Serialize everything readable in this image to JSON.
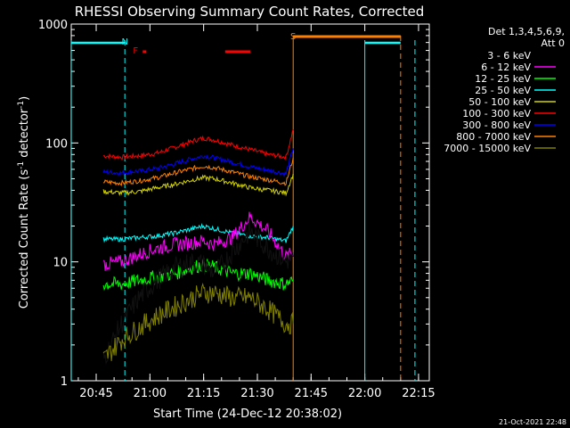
{
  "chart_data": {
    "type": "line",
    "title": "RHESSI Observing Summary Count Rates, Corrected",
    "xlabel": "Start Time (24-Dec-12 20:38:02)",
    "ylabel": "Corrected Count Rate (s",
    "ylabel_sup1": "-1",
    "ylabel_mid": " detector",
    "ylabel_sup2": "-1",
    "ylabel_end": ")",
    "yscale": "log",
    "ylim": [
      1,
      1000
    ],
    "xlim": [
      "20:38:02",
      "22:18:00"
    ],
    "xticks": [
      "20:45",
      "21:00",
      "21:15",
      "21:30",
      "21:45",
      "22:00",
      "22:15"
    ],
    "yticks": [
      "1",
      "10",
      "100",
      "1000"
    ],
    "legend": {
      "placement": "right",
      "header1": "Det 1,3,4,5,6,9,",
      "header2": "Att 0",
      "entries": [
        {
          "label": "3 - 6 keV",
          "color": "#000000"
        },
        {
          "label": "6 - 12 keV",
          "color": "#ff00ff"
        },
        {
          "label": "12 - 25 keV",
          "color": "#00ff00"
        },
        {
          "label": "25 - 50 keV",
          "color": "#00ffff"
        },
        {
          "label": "50 - 100 keV",
          "color": "#d4d400"
        },
        {
          "label": "100 - 300 keV",
          "color": "#ff0000"
        },
        {
          "label": "300 - 800 keV",
          "color": "#0000ff"
        },
        {
          "label": "800 - 7000 keV",
          "color": "#ff8000"
        },
        {
          "label": "7000 - 15000 keV",
          "color": "#808000"
        }
      ]
    },
    "series": [
      {
        "name": "100 - 300 keV",
        "color": "#ff0000",
        "x": [
          "20:47",
          "20:52",
          "20:57",
          "21:02",
          "21:07",
          "21:12",
          "21:15",
          "21:18",
          "21:23",
          "21:28",
          "21:33",
          "21:38",
          "21:40"
        ],
        "y": [
          78,
          76,
          78,
          82,
          92,
          104,
          110,
          106,
          96,
          88,
          80,
          76,
          130
        ]
      },
      {
        "name": "300 - 800 keV",
        "color": "#0000ff",
        "x": [
          "20:47",
          "20:52",
          "20:57",
          "21:02",
          "21:07",
          "21:12",
          "21:15",
          "21:18",
          "21:23",
          "21:28",
          "21:33",
          "21:38",
          "21:40"
        ],
        "y": [
          57,
          56,
          58,
          61,
          67,
          74,
          78,
          75,
          69,
          63,
          59,
          55,
          90
        ]
      },
      {
        "name": "800 - 7000 keV",
        "color": "#ff8000",
        "x": [
          "20:47",
          "20:52",
          "20:57",
          "21:02",
          "21:07",
          "21:12",
          "21:15",
          "21:18",
          "21:23",
          "21:28",
          "21:33",
          "21:38",
          "21:40"
        ],
        "y": [
          47,
          46,
          48,
          51,
          56,
          61,
          64,
          62,
          57,
          52,
          49,
          46,
          75
        ]
      },
      {
        "name": "50 - 100 keV",
        "color": "#d4d400",
        "x": [
          "20:47",
          "20:52",
          "20:57",
          "21:02",
          "21:07",
          "21:12",
          "21:15",
          "21:18",
          "21:23",
          "21:28",
          "21:33",
          "21:38",
          "21:40"
        ],
        "y": [
          39,
          38,
          39,
          42,
          45,
          49,
          51,
          50,
          46,
          42,
          40,
          38,
          55
        ]
      },
      {
        "name": "25 - 50 keV",
        "color": "#00ffff",
        "x": [
          "20:47",
          "20:52",
          "20:57",
          "21:02",
          "21:07",
          "21:12",
          "21:15",
          "21:18",
          "21:23",
          "21:28",
          "21:33",
          "21:38",
          "21:40"
        ],
        "y": [
          15.5,
          15.5,
          16,
          16.5,
          17.5,
          19,
          20,
          19,
          17.5,
          16.5,
          16,
          15,
          20
        ]
      },
      {
        "name": "6 - 12 keV",
        "color": "#ff00ff",
        "x": [
          "20:47",
          "20:52",
          "20:57",
          "21:02",
          "21:07",
          "21:12",
          "21:15",
          "21:18",
          "21:23",
          "21:28",
          "21:33",
          "21:38",
          "21:40"
        ],
        "y": [
          9.5,
          10,
          11.5,
          13,
          14,
          14.5,
          15,
          14,
          16,
          24,
          18,
          11,
          12
        ]
      },
      {
        "name": "12 - 25 keV",
        "color": "#00ff00",
        "x": [
          "20:47",
          "20:52",
          "20:57",
          "21:02",
          "21:07",
          "21:12",
          "21:15",
          "21:18",
          "21:23",
          "21:28",
          "21:33",
          "21:38",
          "21:40"
        ],
        "y": [
          6.5,
          6.5,
          7,
          7.5,
          8,
          9,
          9.5,
          9,
          8,
          8,
          7,
          6.5,
          7
        ]
      },
      {
        "name": "3 - 6 keV",
        "color": "#000000",
        "x": [
          "20:47",
          "20:52",
          "20:57",
          "21:02",
          "21:07",
          "21:12",
          "21:15",
          "21:18",
          "21:23",
          "21:28",
          "21:33",
          "21:38",
          "21:40"
        ],
        "y": [
          1.5,
          3,
          5,
          7,
          9,
          10,
          9.5,
          8,
          12,
          18,
          13,
          10,
          11
        ]
      },
      {
        "name": "7000 - 15000 keV",
        "color": "#808000",
        "x": [
          "20:47",
          "20:52",
          "20:57",
          "21:02",
          "21:07",
          "21:12",
          "21:15",
          "21:18",
          "21:23",
          "21:28",
          "21:33",
          "21:38",
          "21:40"
        ],
        "y": [
          1.5,
          2.2,
          2.8,
          3.5,
          4.2,
          5,
          5.5,
          5.5,
          5,
          5,
          4,
          3,
          3
        ]
      }
    ],
    "flags": [
      {
        "label": "N",
        "x": "20:53",
        "color": "#00ffff"
      },
      {
        "label": "F",
        "x": "20:56",
        "color": "#ff0000"
      },
      {
        "label": "S",
        "x": "21:40",
        "color": "#ff8000"
      }
    ],
    "flare_bars": [
      {
        "x": [
          "20:58",
          "20:59"
        ],
        "color": "#ff0000"
      },
      {
        "x": [
          "21:21",
          "21:28"
        ],
        "color": "#ff0000"
      }
    ],
    "saa_bar": {
      "x": [
        "21:40",
        "22:10"
      ],
      "color": "#ff8000"
    },
    "night_bars": [
      {
        "x": [
          "20:38",
          "20:53"
        ],
        "color": "#00ffff"
      },
      {
        "x": [
          "22:00",
          "22:10"
        ],
        "color": "#00ffff"
      }
    ],
    "night_markers": [
      "20:38",
      "20:53",
      "22:00",
      "22:14"
    ],
    "saa_markers": [
      "21:40",
      "22:10"
    ]
  },
  "timestamp": "21-Oct-2021 22:48"
}
